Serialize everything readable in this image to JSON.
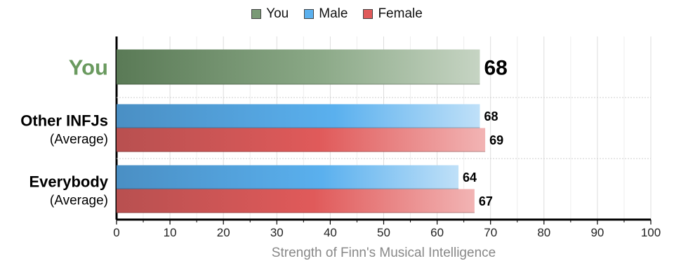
{
  "legend": [
    {
      "label": "You",
      "color": "#7a9a76"
    },
    {
      "label": "Male",
      "color": "#5ab0ee"
    },
    {
      "label": "Female",
      "color": "#e05a5a"
    }
  ],
  "chart_data": {
    "type": "bar",
    "orientation": "horizontal",
    "xlabel": "Strength of Finn's Musical Intelligence",
    "xlim": [
      0,
      100
    ],
    "xticks": [
      0,
      10,
      20,
      30,
      40,
      50,
      60,
      70,
      80,
      90,
      100
    ],
    "grid": true,
    "legend_position": "top-center",
    "groups": [
      {
        "label": "You",
        "sublabel": "",
        "bars": [
          {
            "series": "You",
            "value": 68
          }
        ]
      },
      {
        "label": "Other INFJs",
        "sublabel": "(Average)",
        "bars": [
          {
            "series": "Male",
            "value": 68
          },
          {
            "series": "Female",
            "value": 69
          }
        ]
      },
      {
        "label": "Everybody",
        "sublabel": "(Average)",
        "bars": [
          {
            "series": "Male",
            "value": 64
          },
          {
            "series": "Female",
            "value": 67
          }
        ]
      }
    ],
    "colors": {
      "You": "#6b8a66",
      "Male": "#5ab0ee",
      "Female": "#e05a5a",
      "you_label": "#6a9a5f"
    }
  }
}
